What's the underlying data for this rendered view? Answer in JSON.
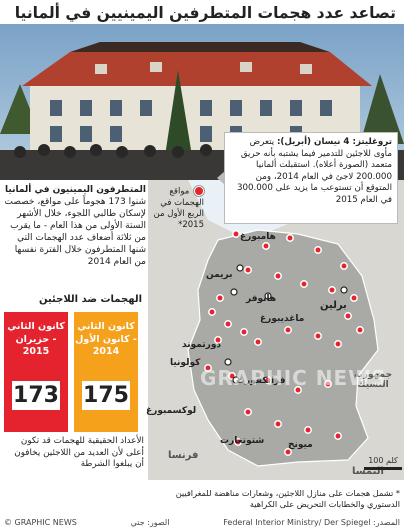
{
  "title": "تصاعد عدد هجمات المتطرفين اليمينيين في ألمانيا",
  "callout": {
    "head": "تروغليتز: 4 نيسان (أبريل):",
    "body": "يتعرض مأوى للاجئين للتدمير فيما يشتبه بأنه حريق متعمد (الصورة أعلاه). استقبلت ألمانيا 200.000 لاجئ في العام 2014، ومن المتوقع أن تستوعب ما يزيد على 300.000 في العام 2015"
  },
  "lead": {
    "strong": "المتطرفون اليمينيون في ألمانيا",
    "body": "شنوا 173 هجوماً على مواقع، خصصت لإسكان طالبي اللجوء، خلال الأشهر الستة الأولى من هذا العام - ما يقرب من ثلاثة أضعاف عدد الهجمات التي شنها المتطرفون خلال الفترة نفسها من العام 2014"
  },
  "legend": {
    "label": "مواقع الهجمات في الربع الأول من 2015*"
  },
  "stats": {
    "title": "الهجمات ضد اللاجئين",
    "cards": [
      {
        "period": "كانون الثاني - حزيران",
        "year": "2015",
        "value": "173",
        "color": "#e5232f"
      },
      {
        "period": "كانون الثاني - كانون الأول",
        "year": "2014",
        "value": "175",
        "color": "#f6a11c"
      }
    ]
  },
  "footnote_left": "الأعداد الحقيقية للهجمات قد تكون أعلى لأن العديد من اللاجئين يخافون أن يبلغوا الشرطة",
  "footnote_right": "* تشمل هجمات على منازل اللاجئين، وشعارات مناهضة للمغرافيين الدستوري والخطابات التحريض على الكراهية",
  "scale_label": "100 كلم",
  "credits": {
    "brand": "© GRAPHIC NEWS",
    "photo": "الصور: جتي",
    "source": "المصدر: Federal Interior Ministry/ Der Spiegel"
  },
  "watermark": "GRAPHIC NEWS",
  "map": {
    "cities": [
      {
        "name": "هامبورغ"
      },
      {
        "name": "برلين"
      },
      {
        "name": "بريمن"
      },
      {
        "name": "هانوفر"
      },
      {
        "name": "ماغديبورغ"
      },
      {
        "name": "دورتموند"
      },
      {
        "name": "كولونيا"
      },
      {
        "name": "فرانكفورت"
      },
      {
        "name": "لوكسمبورغ"
      },
      {
        "name": "شتوتغارت"
      },
      {
        "name": "ميونخ"
      },
      {
        "name": "فرنسا"
      },
      {
        "name": "النمسا"
      },
      {
        "name": "جمهورية التشيك"
      }
    ],
    "colors": {
      "land": "#a9aaa6",
      "other": "#d8d7d2",
      "sea": "#eaf1f6",
      "dot": "#e5232f"
    }
  }
}
